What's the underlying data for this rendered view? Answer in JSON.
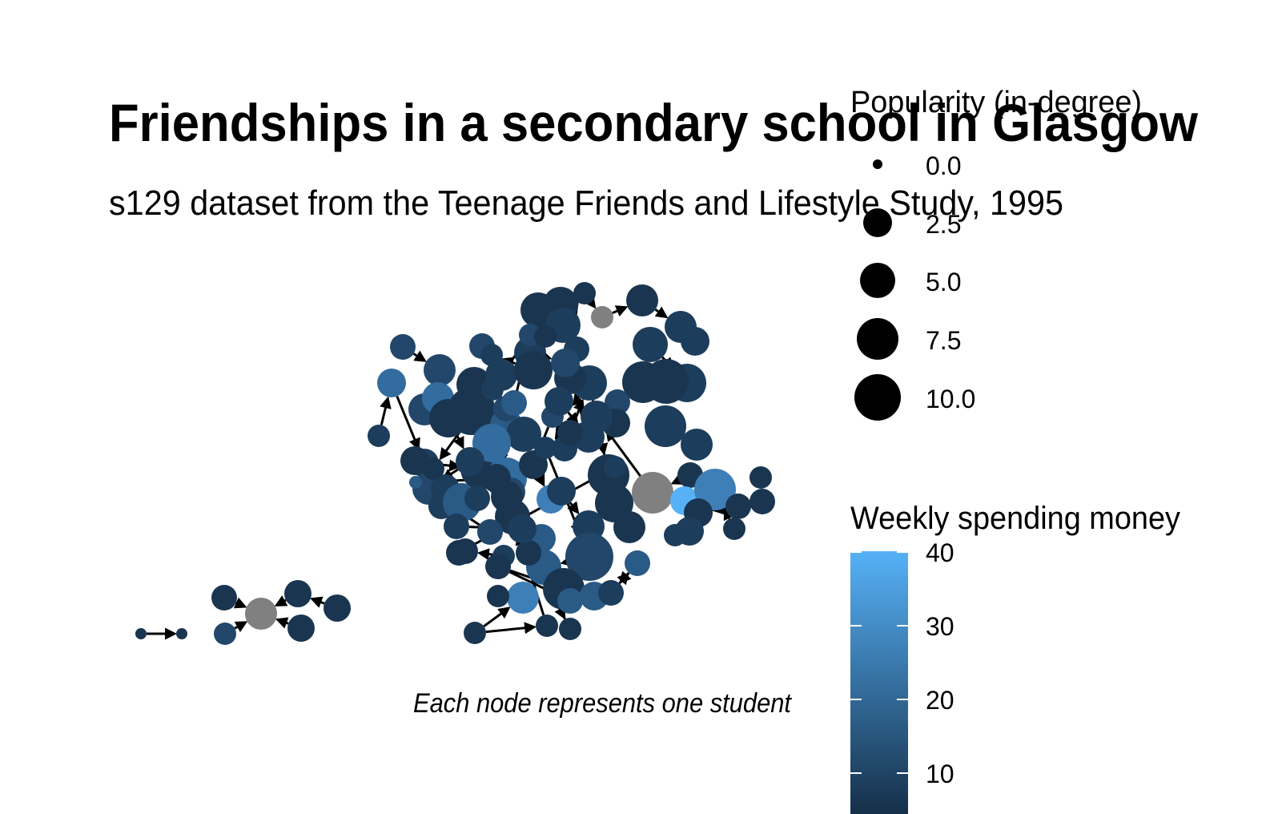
{
  "title": "Friendships in a secondary school in Glasgow",
  "subtitle": "s129 dataset from the Teenage Friends and Lifestyle Study, 1995",
  "caption": "Each node represents one student",
  "legend_size": {
    "title": "Popularity (in-degree)",
    "items": [
      "0.0",
      "2.5",
      "5.0",
      "7.5",
      "10.0"
    ]
  },
  "legend_color": {
    "title": "Weekly spending money",
    "ticks": [
      "40",
      "30",
      "20",
      "10"
    ],
    "gradient": [
      "#132B43",
      "#56B1F7"
    ]
  },
  "colors": {
    "missing": "#808080",
    "edge": "#000000",
    "low": "#132B43",
    "high": "#56B1F7"
  }
}
